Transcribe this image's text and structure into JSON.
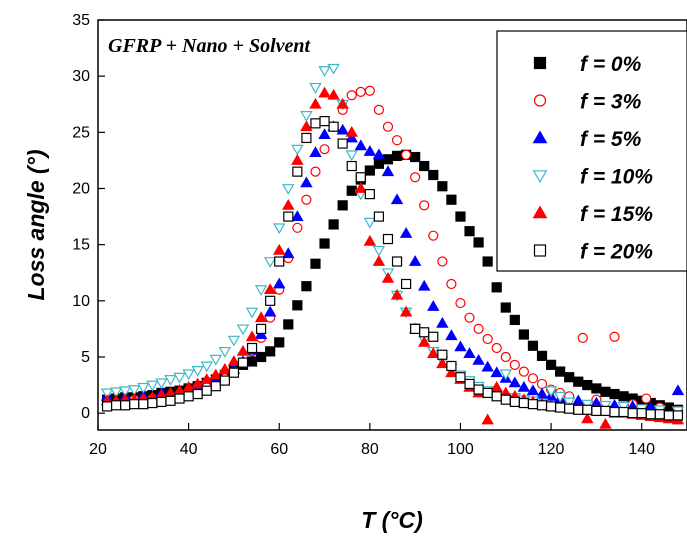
{
  "chart_data": {
    "type": "scatter",
    "title": "",
    "annotation": "GFRP + Nano + Solvent",
    "xlabel": "T (°C)",
    "ylabel": "Loss angle (°)",
    "xlim": [
      20,
      150
    ],
    "ylim": [
      -1.5,
      35
    ],
    "x_ticks": [
      20,
      40,
      60,
      80,
      100,
      120,
      140
    ],
    "y_ticks": [
      0,
      5,
      10,
      15,
      20,
      25,
      30,
      35
    ],
    "grid": false,
    "legend_position": "top-right",
    "series": [
      {
        "name": "f = 0%",
        "marker": "square-filled",
        "color": "#000000",
        "x": [
          22,
          24,
          26,
          28,
          30,
          32,
          34,
          36,
          38,
          40,
          42,
          44,
          46,
          48,
          50,
          52,
          54,
          56,
          58,
          60,
          62,
          64,
          66,
          68,
          70,
          72,
          74,
          76,
          78,
          80,
          82,
          84,
          86,
          88,
          90,
          92,
          94,
          96,
          98,
          100,
          102,
          104,
          106,
          108,
          110,
          112,
          114,
          116,
          118,
          120,
          122,
          124,
          126,
          128,
          130,
          132,
          134,
          136,
          138,
          140,
          142,
          144,
          146,
          148
        ],
        "y": [
          1.2,
          1.3,
          1.4,
          1.4,
          1.5,
          1.6,
          1.8,
          1.9,
          2.0,
          2.2,
          2.4,
          2.7,
          3.0,
          3.4,
          3.9,
          4.3,
          4.6,
          5.0,
          5.5,
          6.3,
          7.9,
          9.6,
          11.3,
          13.3,
          15.1,
          16.8,
          18.5,
          19.8,
          20.8,
          21.6,
          22.2,
          22.6,
          22.9,
          23.0,
          22.8,
          22.0,
          21.2,
          20.2,
          19.0,
          17.5,
          16.2,
          15.2,
          13.5,
          11.2,
          9.4,
          8.3,
          7.0,
          6.0,
          5.1,
          4.3,
          3.7,
          3.2,
          2.8,
          2.5,
          2.2,
          1.9,
          1.7,
          1.5,
          1.3,
          1.1,
          0.9,
          0.7,
          0.5,
          0.3
        ]
      },
      {
        "name": "f = 3%",
        "marker": "circle-open",
        "color": "#ff0000",
        "x": [
          28,
          32,
          36,
          40,
          44,
          46,
          48,
          50,
          52,
          54,
          56,
          58,
          60,
          62,
          64,
          66,
          68,
          70,
          72,
          74,
          76,
          78,
          80,
          82,
          84,
          86,
          88,
          90,
          92,
          94,
          96,
          98,
          100,
          102,
          104,
          106,
          108,
          110,
          112,
          114,
          116,
          118,
          120,
          122,
          124,
          127,
          130,
          134,
          138,
          141,
          144,
          148
        ],
        "y": [
          1.2,
          1.3,
          1.5,
          1.8,
          2.3,
          2.7,
          3.1,
          3.7,
          4.5,
          5.5,
          6.7,
          8.5,
          11.0,
          13.8,
          16.5,
          19.0,
          21.5,
          23.5,
          25.5,
          27.0,
          28.3,
          28.6,
          28.7,
          27.0,
          25.5,
          24.3,
          23.0,
          21.0,
          18.5,
          15.8,
          13.5,
          11.5,
          9.8,
          8.5,
          7.5,
          6.6,
          5.8,
          5.0,
          4.3,
          3.7,
          3.1,
          2.6,
          2.1,
          1.8,
          1.5,
          6.7,
          1.2,
          6.8,
          0.8,
          1.3,
          0.5,
          0.2
        ]
      },
      {
        "name": "f = 5%",
        "marker": "triangle-up-filled",
        "color": "#0000ff",
        "x": [
          22,
          26,
          30,
          34,
          38,
          42,
          46,
          50,
          52,
          54,
          56,
          58,
          60,
          62,
          64,
          66,
          68,
          70,
          72,
          74,
          76,
          78,
          80,
          82,
          84,
          86,
          88,
          90,
          92,
          94,
          96,
          98,
          100,
          102,
          104,
          106,
          108,
          110,
          112,
          114,
          116,
          118,
          120,
          122,
          126,
          130,
          134,
          138,
          142,
          148
        ],
        "y": [
          1.5,
          1.5,
          1.6,
          1.8,
          2.0,
          2.4,
          3.0,
          3.9,
          4.6,
          5.6,
          7.0,
          9.0,
          11.5,
          14.2,
          17.5,
          20.5,
          23.2,
          24.8,
          25.5,
          25.2,
          24.5,
          23.8,
          23.3,
          23.0,
          21.5,
          19.0,
          16.0,
          13.5,
          11.3,
          9.5,
          8.0,
          6.9,
          5.9,
          5.3,
          4.7,
          4.1,
          3.6,
          3.1,
          2.7,
          2.3,
          2.0,
          1.7,
          1.5,
          1.3,
          1.1,
          0.9,
          0.7,
          0.6,
          0.5,
          2.0
        ]
      },
      {
        "name": "f = 10%",
        "marker": "triangle-down-open",
        "color": "#40b8c8",
        "x": [
          22,
          24,
          26,
          28,
          30,
          32,
          34,
          36,
          38,
          40,
          42,
          44,
          46,
          48,
          50,
          52,
          54,
          56,
          58,
          60,
          62,
          64,
          66,
          68,
          70,
          72,
          74,
          76,
          78,
          80,
          82,
          84,
          86,
          88,
          90,
          92,
          94,
          96,
          98,
          100,
          102,
          104,
          106,
          108,
          110,
          112,
          114,
          116,
          118,
          120,
          122,
          124,
          128,
          132,
          136,
          140,
          144,
          148
        ],
        "y": [
          1.8,
          1.9,
          2.0,
          2.1,
          2.3,
          2.5,
          2.7,
          3.0,
          3.2,
          3.5,
          3.8,
          4.2,
          4.8,
          5.5,
          6.5,
          7.5,
          9.0,
          11.0,
          13.5,
          16.5,
          20.0,
          23.5,
          26.5,
          29.0,
          30.5,
          30.7,
          27.5,
          23.0,
          19.5,
          17.0,
          14.5,
          12.5,
          10.5,
          9.0,
          7.6,
          6.5,
          5.5,
          4.7,
          4.0,
          3.4,
          2.9,
          2.4,
          2.0,
          1.7,
          3.5,
          1.4,
          1.2,
          1.1,
          0.9,
          2.0,
          1.5,
          1.0,
          0.8,
          0.7,
          0.6,
          0.4,
          0.3,
          0.2
        ]
      },
      {
        "name": "f = 15%",
        "marker": "triangle-up-filled",
        "color": "#ff0000",
        "x": [
          22,
          24,
          26,
          28,
          30,
          32,
          34,
          36,
          38,
          40,
          42,
          44,
          46,
          48,
          50,
          52,
          54,
          56,
          58,
          60,
          62,
          64,
          66,
          68,
          70,
          72,
          74,
          76,
          78,
          80,
          82,
          84,
          86,
          88,
          90,
          92,
          94,
          96,
          98,
          100,
          102,
          104,
          106,
          108,
          110,
          112,
          114,
          116,
          118,
          120,
          122,
          124,
          126,
          128,
          130,
          132,
          134,
          136,
          138,
          140,
          142,
          144,
          146,
          148
        ],
        "y": [
          1.1,
          1.1,
          1.2,
          1.2,
          1.3,
          1.4,
          1.6,
          1.8,
          2.0,
          2.3,
          2.6,
          3.0,
          3.4,
          3.9,
          4.6,
          5.5,
          6.8,
          8.5,
          11.0,
          14.5,
          18.5,
          22.5,
          25.5,
          27.5,
          28.5,
          28.3,
          27.5,
          25.0,
          20.0,
          15.3,
          13.5,
          12.0,
          10.5,
          9.0,
          7.5,
          6.3,
          5.3,
          4.4,
          3.6,
          3.0,
          2.3,
          1.8,
          -0.6,
          2.3,
          1.8,
          1.5,
          1.2,
          1.0,
          0.8,
          0.6,
          0.5,
          0.4,
          0.3,
          -0.5,
          0.2,
          -1.0,
          0.0,
          0.0,
          -0.1,
          -0.2,
          -0.3,
          -0.4,
          -0.5,
          -0.6
        ]
      },
      {
        "name": "f = 20%",
        "marker": "square-open",
        "color": "#000000",
        "x": [
          22,
          24,
          26,
          28,
          30,
          32,
          34,
          36,
          38,
          40,
          42,
          44,
          46,
          48,
          50,
          52,
          54,
          56,
          58,
          60,
          62,
          64,
          66,
          68,
          70,
          72,
          74,
          76,
          78,
          80,
          82,
          84,
          86,
          88,
          90,
          92,
          94,
          96,
          98,
          100,
          102,
          104,
          106,
          108,
          110,
          112,
          114,
          116,
          118,
          120,
          122,
          124,
          126,
          128,
          130,
          132,
          134,
          136,
          138,
          140,
          142,
          144,
          146,
          148
        ],
        "y": [
          0.6,
          0.7,
          0.7,
          0.8,
          0.8,
          0.9,
          1.0,
          1.1,
          1.3,
          1.5,
          1.7,
          2.0,
          2.4,
          2.9,
          3.6,
          4.5,
          5.8,
          7.5,
          10.0,
          13.5,
          17.5,
          21.5,
          24.5,
          25.8,
          26.0,
          25.5,
          24.0,
          22.0,
          21.0,
          19.5,
          17.5,
          15.5,
          13.5,
          11.5,
          7.5,
          7.2,
          6.8,
          5.2,
          4.2,
          3.2,
          2.6,
          2.1,
          1.8,
          1.5,
          1.2,
          1.0,
          0.9,
          0.8,
          0.7,
          0.6,
          0.5,
          0.4,
          0.3,
          0.3,
          0.2,
          0.2,
          0.1,
          0.1,
          0.0,
          0.0,
          -0.1,
          -0.1,
          -0.2,
          -0.2
        ]
      }
    ]
  }
}
